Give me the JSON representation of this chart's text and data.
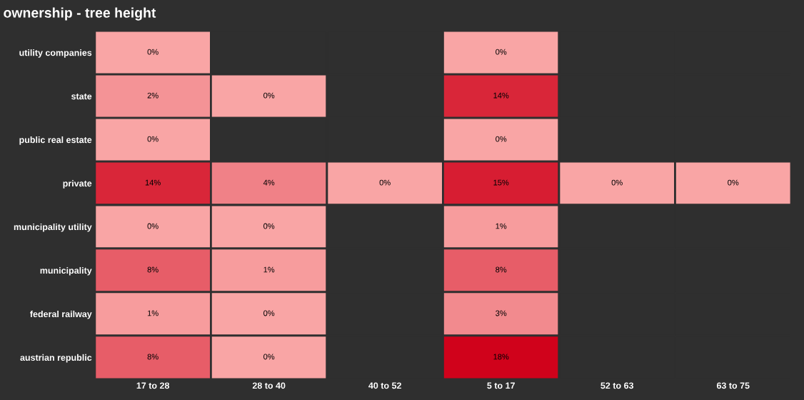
{
  "chart_data": {
    "type": "heatmap",
    "title": "ownership - tree height",
    "categories": [
      "17 to 28",
      "28 to 40",
      "40 to 52",
      "5 to 17",
      "52 to 63",
      "63 to 75"
    ],
    "y_categories": [
      "utility companies",
      "state",
      "public real estate",
      "private",
      "municipality utility",
      "municipality",
      "federal railway",
      "austrian republic"
    ],
    "cells": [
      [
        0,
        null,
        null,
        0,
        null,
        null
      ],
      [
        2,
        0,
        null,
        14,
        null,
        null
      ],
      [
        0,
        null,
        null,
        0,
        null,
        null
      ],
      [
        14,
        4,
        0,
        15,
        0,
        0
      ],
      [
        0,
        0,
        null,
        1,
        null,
        null
      ],
      [
        8,
        1,
        null,
        8,
        null,
        null
      ],
      [
        1,
        0,
        null,
        3,
        null,
        null
      ],
      [
        8,
        0,
        null,
        18,
        null,
        null
      ]
    ],
    "cell_labels": [
      [
        "0%",
        null,
        null,
        "0%",
        null,
        null
      ],
      [
        "2%",
        "0%",
        null,
        "14%",
        null,
        null
      ],
      [
        "0%",
        null,
        null,
        "0%",
        null,
        null
      ],
      [
        "14%",
        "4%",
        "0%",
        "15%",
        "0%",
        "0%"
      ],
      [
        "0%",
        "0%",
        null,
        "1%",
        null,
        null
      ],
      [
        "8%",
        "1%",
        null,
        "8%",
        null,
        null
      ],
      [
        "1%",
        "0%",
        null,
        "3%",
        null,
        null
      ],
      [
        "8%",
        "0%",
        null,
        "18%",
        null,
        null
      ]
    ],
    "colors": [
      "#f9a5a5",
      "#d0021b"
    ]
  }
}
